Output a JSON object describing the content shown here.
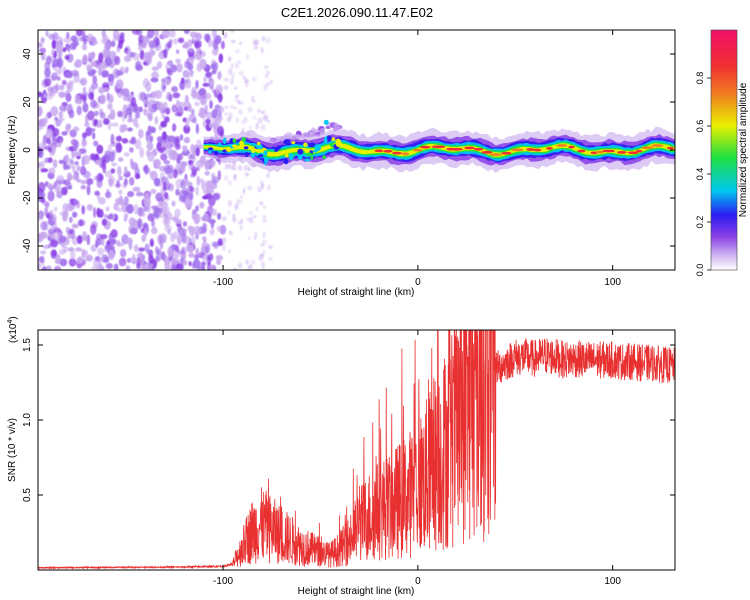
{
  "title": "C2E1.2026.090.11.47.E02",
  "colormap": [
    "#ffffff",
    "#c8a8ef",
    "#8a3ee6",
    "#2a1cf2",
    "#00c8f0",
    "#20e040",
    "#e8f000",
    "#f04020"
  ],
  "chart_data": [
    {
      "type": "heatmap",
      "name": "spectrogram",
      "xlabel": "Height of straight line (km)",
      "ylabel": "Frequency (Hz)",
      "xlim": [
        -195,
        132
      ],
      "ylim": [
        -50,
        50
      ],
      "xticks": [
        -100,
        0,
        100
      ],
      "xtick_labels": [
        "-100",
        "0",
        "100"
      ],
      "yticks": [
        -40,
        -20,
        0,
        20,
        40
      ],
      "ytick_labels": [
        "-40",
        "-20",
        "0",
        "20",
        "40"
      ],
      "noise_region_x": [
        -195,
        -100
      ],
      "signal_center_hz": 0,
      "signal_start_km": -110,
      "harmonic_segment": {
        "x": [
          -75,
          -40
        ],
        "y": [
          3,
          10
        ]
      },
      "colorbar": {
        "label": "Normalized spectral amplitude",
        "range": [
          0,
          1
        ],
        "ticks": [
          0.0,
          0.2,
          0.4,
          0.6,
          0.8
        ],
        "tick_labels": [
          "0.0",
          "0.2",
          "0.4",
          "0.6",
          "0.8"
        ]
      }
    },
    {
      "type": "line",
      "name": "snr",
      "xlabel": "Height of straight line (km)",
      "ylabel": "SNR (10 * v/v)",
      "multiplier_label": "(x10",
      "multiplier_exp": "4",
      "xlim": [
        -195,
        132
      ],
      "ylim": [
        0,
        16000
      ],
      "xticks": [
        -100,
        0,
        100
      ],
      "xtick_labels": [
        "-100",
        "0",
        "100"
      ],
      "yticks": [
        5000,
        10000,
        15000
      ],
      "ytick_labels": [
        "0.5",
        "1.0",
        "1.5"
      ],
      "color": "#e83030",
      "series": [
        {
          "name": "SNR",
          "x": [
            -195,
            -150,
            -120,
            -100,
            -95,
            -90,
            -85,
            -80,
            -75,
            -70,
            -65,
            -60,
            -55,
            -50,
            -45,
            -40,
            -35,
            -30,
            -25,
            -20,
            -15,
            -10,
            -5,
            0,
            5,
            10,
            15,
            20,
            25,
            30,
            35,
            40,
            45,
            50,
            55,
            60,
            65,
            70,
            75,
            80,
            85,
            90,
            95,
            100,
            105,
            110,
            115,
            120,
            125,
            132
          ],
          "y": [
            150,
            180,
            200,
            250,
            400,
            1500,
            2600,
            3000,
            2700,
            2300,
            2000,
            1600,
            1400,
            1200,
            1000,
            1400,
            2000,
            3000,
            3600,
            4000,
            4200,
            4600,
            5000,
            5600,
            6300,
            7400,
            8200,
            9400,
            10800,
            11800,
            12800,
            13400,
            13800,
            14200,
            14200,
            14100,
            14300,
            14200,
            14000,
            14100,
            14000,
            14000,
            14000,
            14000,
            13900,
            13900,
            13800,
            13800,
            13700,
            13600
          ]
        }
      ]
    }
  ]
}
